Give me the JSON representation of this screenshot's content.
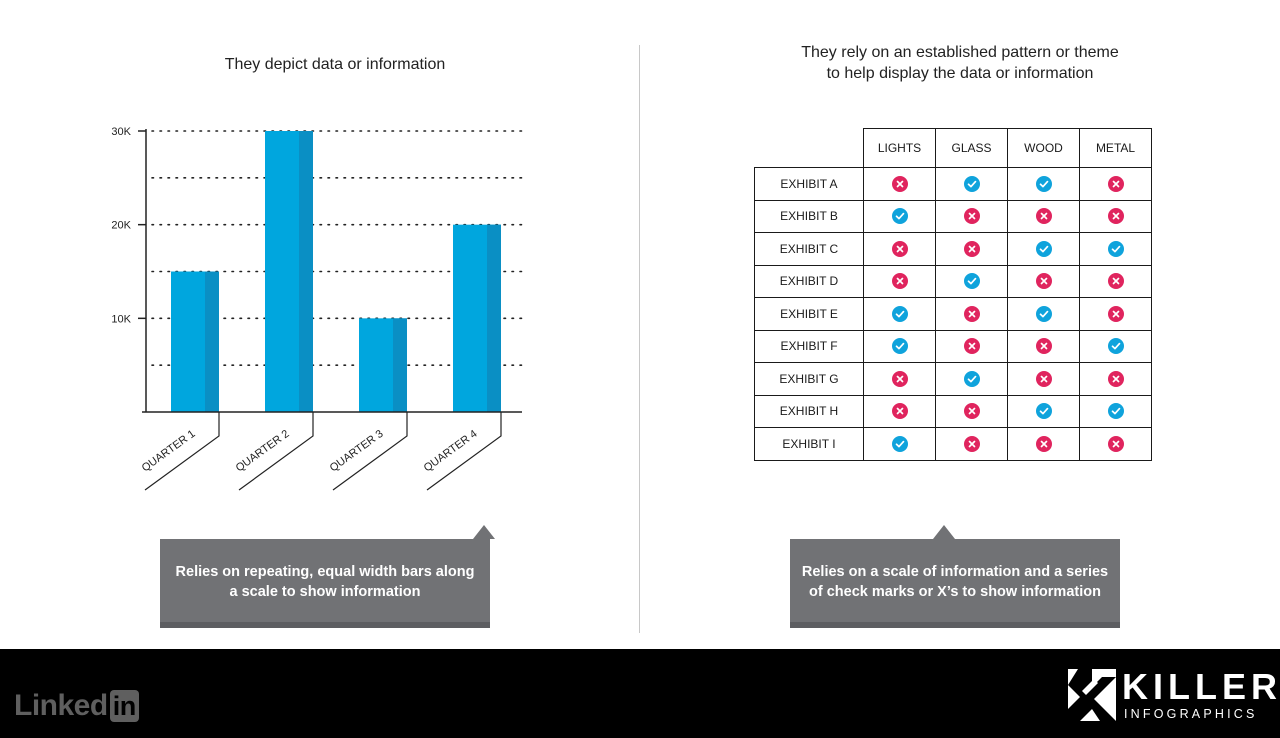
{
  "left_title": "They depict data or information",
  "right_title_line1": "They rely on an established pattern or theme",
  "right_title_line2": "to help display the data or information",
  "chart_data": {
    "type": "bar",
    "categories": [
      "QUARTER 1",
      "QUARTER 2",
      "QUARTER 3",
      "QUARTER 4"
    ],
    "values": [
      15000,
      30000,
      10000,
      20000
    ],
    "yticks": [
      10000,
      20000,
      30000
    ],
    "ytick_labels": [
      "10K",
      "20K",
      "30K"
    ],
    "ylim": [
      0,
      30000
    ],
    "grid": true,
    "color": "#00a6de",
    "color_shade": "#0a8fc4"
  },
  "callout_left_line1": "Relies on repeating, equal width bars along",
  "callout_left_line2": "a scale to show information",
  "callout_right_line1": "Relies on a scale of information and a series",
  "callout_right_line2": "of check marks or X’s to show information",
  "table": {
    "columns": [
      "LIGHTS",
      "GLASS",
      "WOOD",
      "METAL"
    ],
    "rows": [
      {
        "label": "EXHIBIT A",
        "marks": [
          "cross",
          "check",
          "check",
          "cross"
        ]
      },
      {
        "label": "EXHIBIT B",
        "marks": [
          "check",
          "cross",
          "cross",
          "cross"
        ]
      },
      {
        "label": "EXHIBIT C",
        "marks": [
          "cross",
          "cross",
          "check",
          "check"
        ]
      },
      {
        "label": "EXHIBIT D",
        "marks": [
          "cross",
          "check",
          "cross",
          "cross"
        ]
      },
      {
        "label": "EXHIBIT E",
        "marks": [
          "check",
          "cross",
          "check",
          "cross"
        ]
      },
      {
        "label": "EXHIBIT F",
        "marks": [
          "check",
          "cross",
          "cross",
          "check"
        ]
      },
      {
        "label": "EXHIBIT G",
        "marks": [
          "cross",
          "check",
          "cross",
          "cross"
        ]
      },
      {
        "label": "EXHIBIT H",
        "marks": [
          "cross",
          "cross",
          "check",
          "check"
        ]
      },
      {
        "label": "EXHIBIT I",
        "marks": [
          "check",
          "cross",
          "cross",
          "cross"
        ]
      }
    ],
    "check_color": "#0fa3dc",
    "cross_color": "#e0245e"
  },
  "footer": {
    "linkedin_text": "Linked",
    "linkedin_badge": "in",
    "brand_name": "KILLER",
    "brand_sub": "INFOGRAPHICS"
  }
}
